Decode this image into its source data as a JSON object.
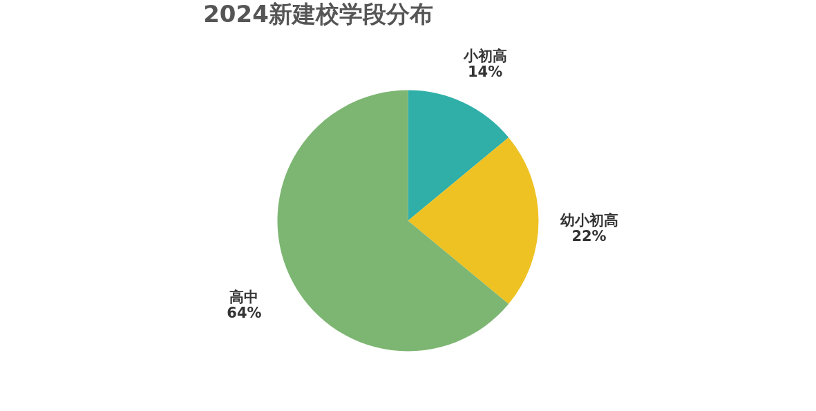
{
  "chart_data": {
    "type": "pie",
    "title": "2024新建校学段分布",
    "categories": [
      "小初高",
      "幼小初高",
      "高中"
    ],
    "values": [
      14,
      22,
      64
    ],
    "value_labels": [
      "14%",
      "22%",
      "64%"
    ],
    "colors": [
      "#2fafa8",
      "#eec223",
      "#7db672"
    ],
    "legend": false
  }
}
